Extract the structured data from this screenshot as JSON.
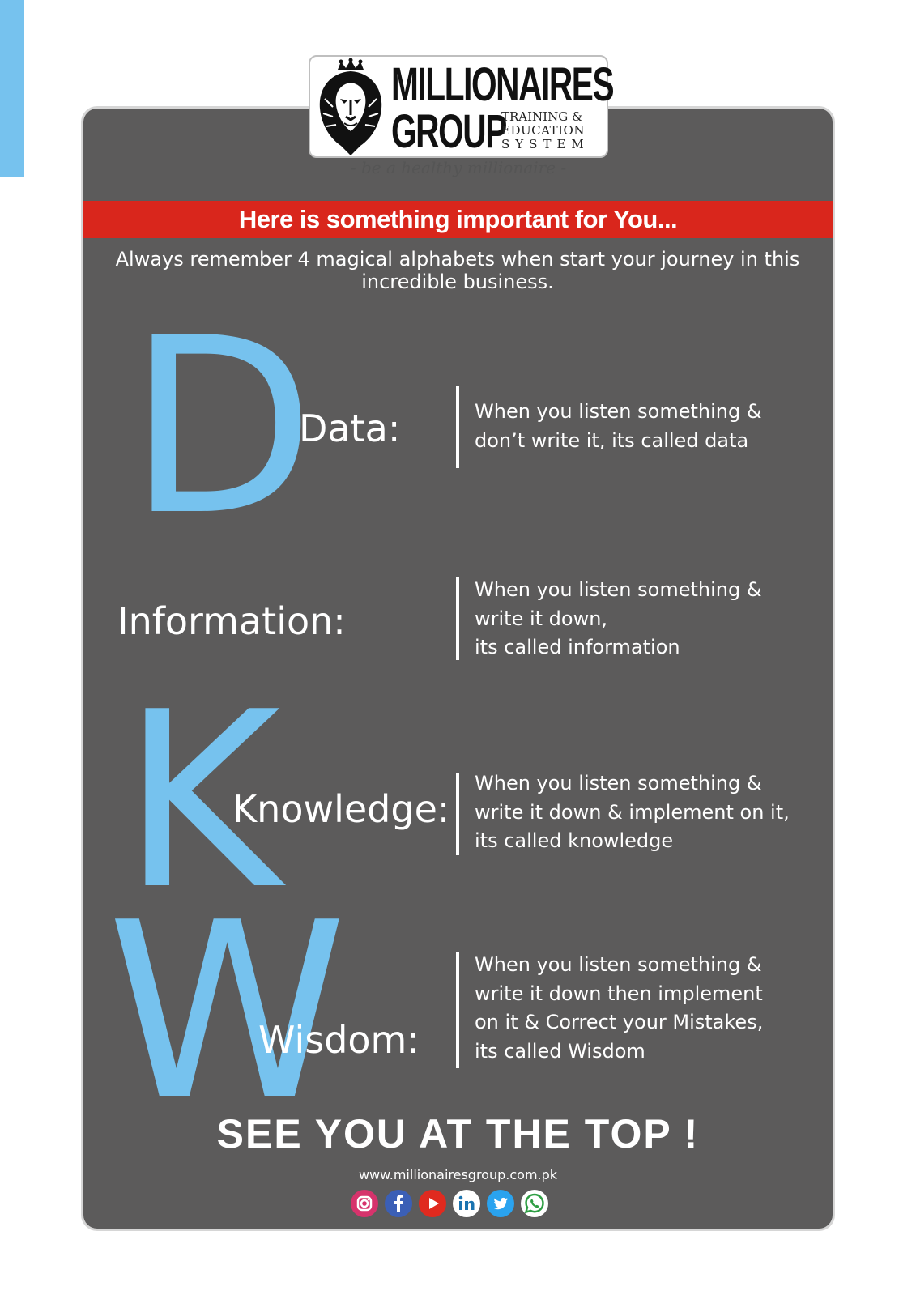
{
  "logo": {
    "line1": "MILLIONAIRES",
    "line2": "GROUP",
    "sub1": "TRAINING &",
    "sub2": "EDUCATION",
    "sub3": "SYSTEM",
    "tagline": "- be a healthy millionaire -"
  },
  "banner": "Here is something important for You...",
  "intro": "Always remember 4 magical alphabets when start your journey in this incredible business.",
  "letters": {
    "d": "D",
    "k": "K",
    "w": "W"
  },
  "items": [
    {
      "term": "Data:",
      "lines": [
        "When you listen something &",
        "don’t write it, its called data"
      ]
    },
    {
      "term": "Information:",
      "lines": [
        "When you listen something &",
        "write it down,",
        "its called information"
      ]
    },
    {
      "term": "Knowledge:",
      "lines": [
        "When you listen something &",
        "write it down & implement on it,",
        "its called knowledge"
      ]
    },
    {
      "term": "Wisdom:",
      "lines": [
        "When you listen something &",
        "write it down then implement",
        "on it & Correct your Mistakes,",
        "its called Wisdom"
      ]
    }
  ],
  "slogan": "SEE YOU AT THE TOP !",
  "website": "www.millionairesgroup.com.pk",
  "social_icons": [
    "instagram-icon",
    "facebook-icon",
    "youtube-icon",
    "linkedin-icon",
    "twitter-icon",
    "whatsapp-icon"
  ],
  "colors": {
    "card": "#5c5b5b",
    "banner": "#d9261c",
    "accent_letters": "#76c2ee",
    "text": "#ffffff"
  }
}
